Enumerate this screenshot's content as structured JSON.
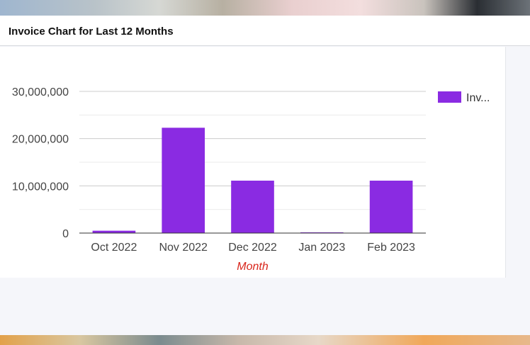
{
  "header": {
    "title": "Invoice Chart for Last 12 Months"
  },
  "chart_data": {
    "type": "bar",
    "categories": [
      "Oct 2022",
      "Nov 2022",
      "Dec 2022",
      "Jan 2023",
      "Feb 2023"
    ],
    "series": [
      {
        "name": "Inv...",
        "color": "#8a2be2",
        "values": [
          500000,
          22300000,
          11100000,
          100000,
          11100000
        ]
      }
    ],
    "y_ticks": [
      0,
      10000000,
      20000000,
      30000000
    ],
    "y_tick_labels": [
      "0",
      "10,000,000",
      "20,000,000",
      "30,000,000"
    ],
    "ylim": [
      0,
      30000000
    ],
    "xlabel": "Month",
    "ylabel": "",
    "grid": true,
    "legend_position": "top-right"
  }
}
